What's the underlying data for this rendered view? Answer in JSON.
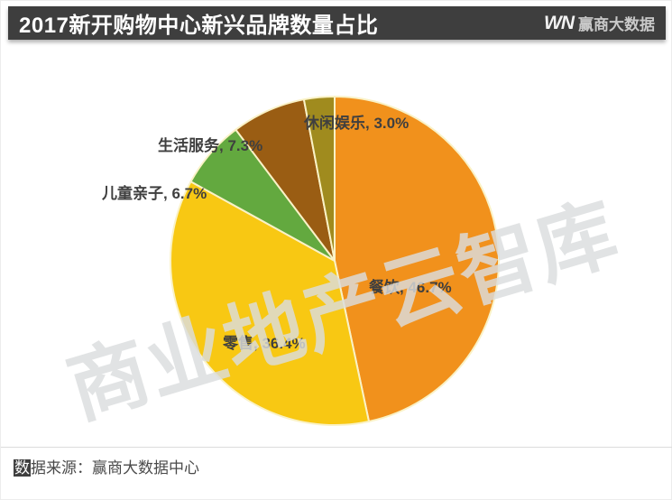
{
  "header": {
    "title": "2017新开购物中心新兴品牌数量占比",
    "logo_mark": "WN",
    "logo_text": "赢商大数据",
    "bar_color": "#3e3e3e"
  },
  "watermark_text": "商业地产云智库",
  "footer": {
    "source_first_char": "数",
    "source_rest": "据来源：赢商大数据中心",
    "source_full": "数据来源：赢商大数据中心"
  },
  "chart_data": {
    "type": "pie",
    "title": "2017新开购物中心新兴品牌数量占比",
    "start_angle_deg": 0,
    "direction": "clockwise",
    "legend": "none",
    "separator_color": "#faf2c6",
    "label_color": "#3f3f3f",
    "slices": [
      {
        "name": "餐饮",
        "value": 46.7,
        "display": "餐饮, 46.7%",
        "color": "#F1911C"
      },
      {
        "name": "零售",
        "value": 36.4,
        "display": "零售, 36.4%",
        "color": "#F8C813"
      },
      {
        "name": "儿童亲子",
        "value": 6.7,
        "display": "儿童亲子, 6.7%",
        "color": "#63A93F"
      },
      {
        "name": "生活服务",
        "value": 7.3,
        "display": "生活服务, 7.3%",
        "color": "#9A5D13"
      },
      {
        "name": "休闲娱乐",
        "value": 3.0,
        "display": "休闲娱乐, 3.0%",
        "color": "#A08B1E"
      }
    ]
  }
}
